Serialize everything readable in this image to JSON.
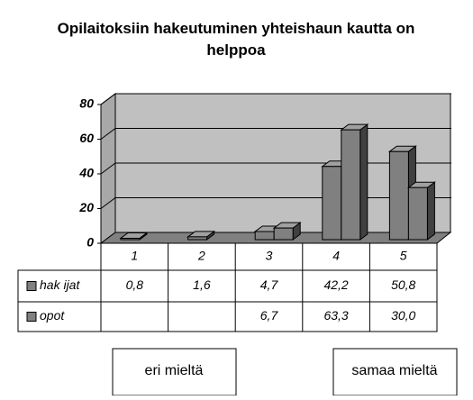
{
  "chart_data": {
    "type": "bar3d",
    "title": "Opilaitoksiin hakeutuminen yhteishaun kautta on helppoa",
    "categories": [
      "1",
      "2",
      "3",
      "4",
      "5"
    ],
    "series": [
      {
        "name": "hak ijat",
        "color": "#808080",
        "values": [
          0.8,
          1.6,
          4.7,
          42.2,
          50.8
        ],
        "value_labels": [
          "0,8",
          "1,6",
          "4,7",
          "42,2",
          "50,8"
        ]
      },
      {
        "name": "opot",
        "color": "#808080",
        "values": [
          null,
          null,
          6.7,
          63.3,
          30.0
        ],
        "value_labels": [
          null,
          null,
          "6,7",
          "63,3",
          "30,0"
        ]
      }
    ],
    "ylim": [
      0,
      80
    ],
    "yticks": [
      0,
      20,
      40,
      60,
      80
    ],
    "grid": true,
    "annotations": [
      "eri mieltä",
      "samaa mieltä"
    ]
  }
}
